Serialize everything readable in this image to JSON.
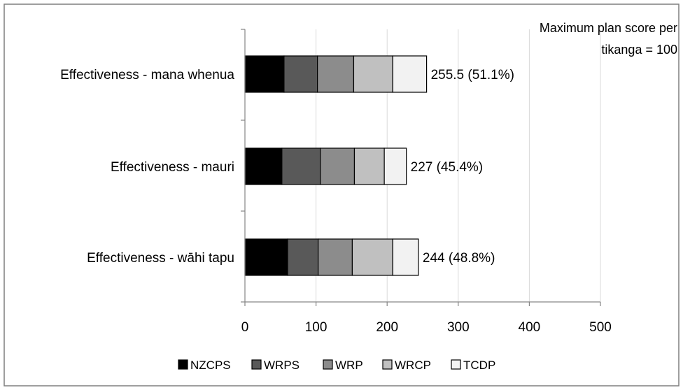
{
  "chart_data": {
    "type": "bar",
    "orientation": "horizontal",
    "stacked": true,
    "categories": [
      "Effectiveness - mana whenua",
      "Effectiveness - mauri",
      "Effectiveness - wāhi tapu"
    ],
    "series": [
      {
        "name": "NZCPS",
        "color": "#000000",
        "values": [
          55,
          52,
          60
        ]
      },
      {
        "name": "WRPS",
        "color": "#595959",
        "values": [
          47,
          54,
          43
        ]
      },
      {
        "name": "WRP",
        "color": "#8c8c8c",
        "values": [
          51,
          48,
          48
        ]
      },
      {
        "name": "WRCP",
        "color": "#c0c0c0",
        "values": [
          55,
          42,
          57
        ]
      },
      {
        "name": "TCDP",
        "color": "#f2f2f2",
        "values": [
          47.5,
          31,
          36
        ]
      }
    ],
    "data_labels": [
      "255.5 (51.1%)",
      "227 (45.4%)",
      "244 (48.8%)"
    ],
    "xlim": [
      0,
      500
    ],
    "xticks": [
      0,
      100,
      200,
      300,
      400,
      500
    ],
    "grid": "vertical",
    "legend_position": "bottom",
    "annotation": [
      "Maximum plan score per",
      "tikanga = 100"
    ]
  }
}
